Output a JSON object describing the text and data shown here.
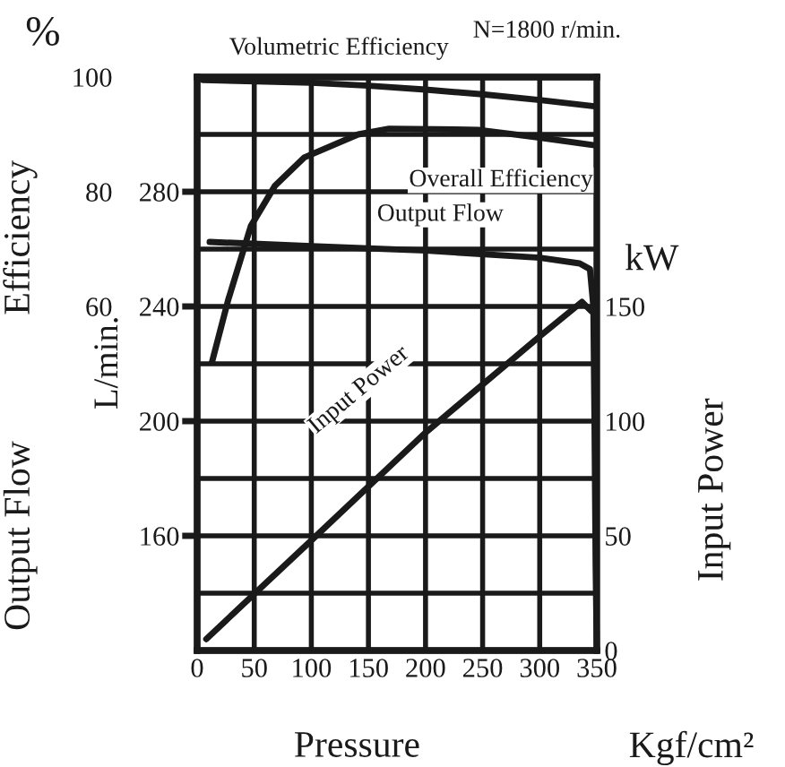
{
  "chart_data": {
    "type": "line",
    "xlabel": "Pressure",
    "ylabel": "Efficiency",
    "y2label": "Input Power",
    "y3label": "Output Flow",
    "annotations": [
      "%",
      "N=1800 r/min.",
      "L/min.",
      "kW",
      "Kgf/cm²"
    ],
    "xlim": [
      0,
      350
    ],
    "xticks": [
      0,
      50,
      100,
      150,
      200,
      250,
      300,
      350
    ],
    "ylim": [
      0,
      100
    ],
    "yticks": [
      {
        "value": 0,
        "label": null
      },
      {
        "value": 10,
        "label": null
      },
      {
        "value": 20,
        "label": null
      },
      {
        "value": 30,
        "label": null
      },
      {
        "value": 40,
        "label": null
      },
      {
        "value": 50,
        "label": null
      },
      60,
      {
        "value": 70,
        "label": null
      },
      80,
      {
        "value": 90,
        "label": null
      },
      100
    ],
    "y2lim": [
      0,
      250
    ],
    "y2ticks": [
      0,
      50,
      100,
      150
    ],
    "y3lim": [
      120,
      320
    ],
    "y3ticks": [
      160,
      200,
      240,
      280
    ],
    "grid": true,
    "legend": false,
    "marker": "none",
    "line_style": "solid",
    "series": [
      {
        "name": "Volumetric Efficiency",
        "color": "#1a1a1a",
        "x": [
          5,
          100,
          150,
          200,
          250,
          300,
          348
        ],
        "values": [
          99.5,
          99,
          98.5,
          97.8,
          97,
          96,
          94.9
        ]
      },
      {
        "name": "Overall Efficiency",
        "color": "#1a1a1a",
        "x": [
          13,
          27,
          47,
          68,
          94,
          141,
          168,
          246,
          298,
          348
        ],
        "values": [
          50.3,
          61,
          74,
          81,
          86,
          90,
          91,
          90.8,
          89.5,
          88.1
        ]
      },
      {
        "name": "Output Flow",
        "color": "#1a1a1a",
        "axis": "y3",
        "x": [
          11,
          100,
          200,
          300,
          335,
          344,
          347,
          348,
          349,
          350
        ],
        "values": [
          262.5,
          261,
          259.5,
          257,
          255,
          253,
          240,
          200,
          150,
          120
        ]
      },
      {
        "name": "Input Power",
        "color": "#1a1a1a",
        "axis": "y2",
        "x": [
          8,
          100,
          200,
          300,
          337,
          345
        ],
        "values": [
          5,
          48,
          95,
          137,
          152,
          148
        ]
      }
    ]
  }
}
